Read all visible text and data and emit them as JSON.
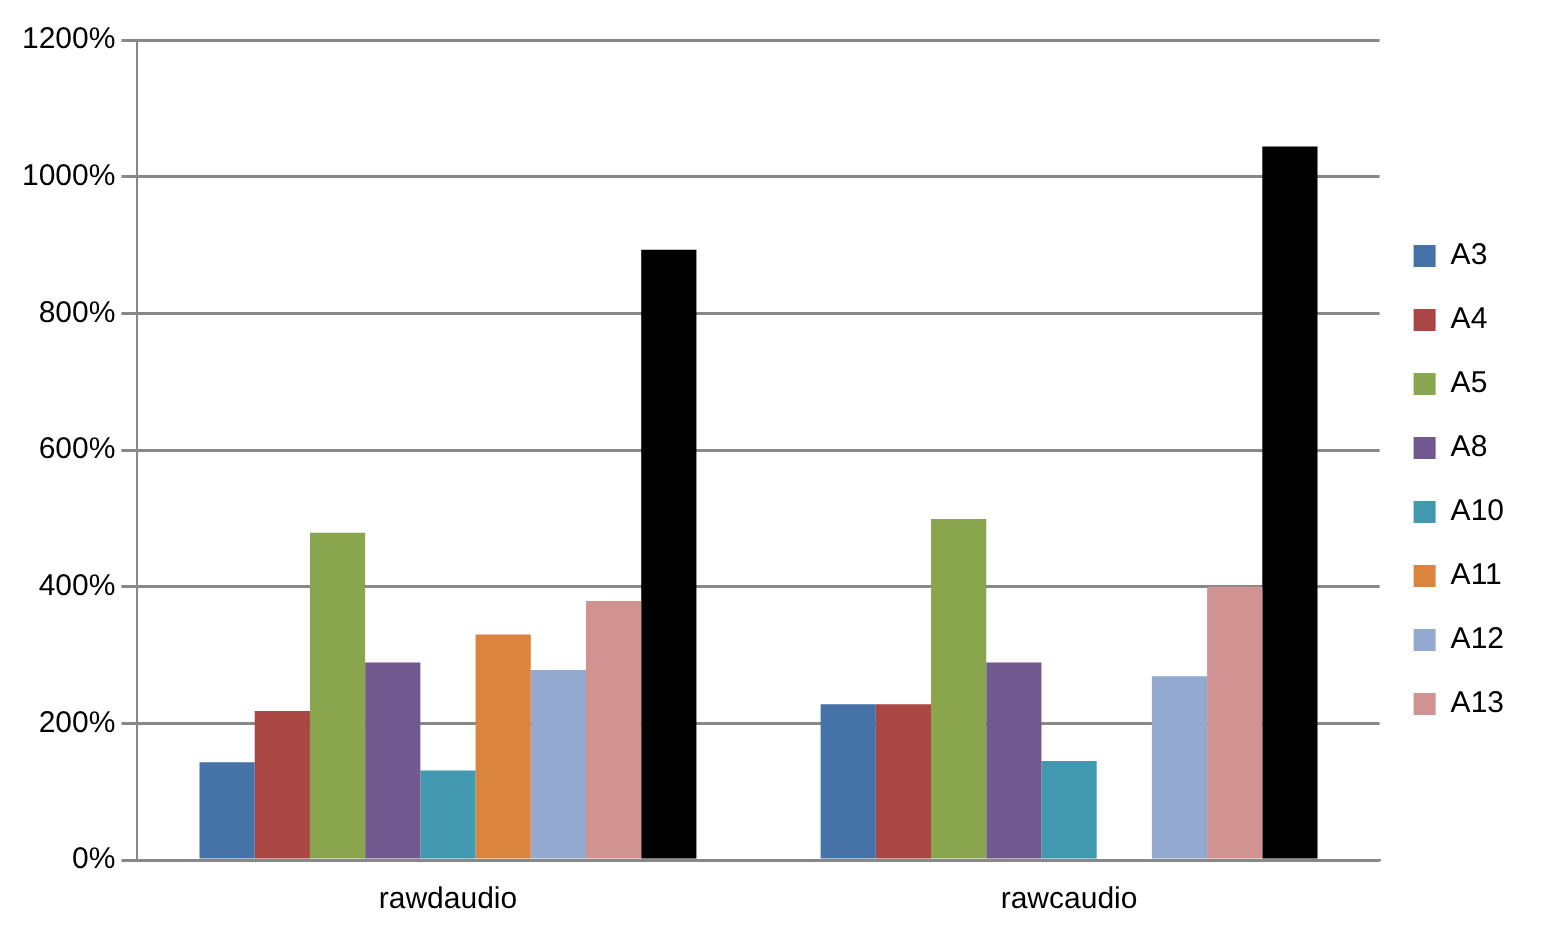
{
  "chart_data": {
    "type": "bar",
    "categories": [
      "rawdaudio",
      "rawcaudio"
    ],
    "series": [
      {
        "name": "A3",
        "color": "#4572a7",
        "values": [
          143,
          228
        ]
      },
      {
        "name": "A4",
        "color": "#aa4643",
        "values": [
          218,
          228
        ]
      },
      {
        "name": "A5",
        "color": "#89a54e",
        "values": [
          479,
          499
        ]
      },
      {
        "name": "A8",
        "color": "#71588f",
        "values": [
          289,
          289
        ]
      },
      {
        "name": "A10",
        "color": "#4198af",
        "values": [
          131,
          145
        ]
      },
      {
        "name": "A11",
        "color": "#db843d",
        "values": [
          330,
          null
        ]
      },
      {
        "name": "A12",
        "color": "#93a9cf",
        "values": [
          278,
          269
        ]
      },
      {
        "name": "A13",
        "color": "#d19392",
        "values": [
          379,
          400
        ]
      },
      {
        "color": "#000000",
        "values": [
          893,
          1044
        ]
      }
    ],
    "ylim": [
      0,
      1200
    ],
    "yticks": [
      {
        "value": 0,
        "label": "0%"
      },
      {
        "value": 200,
        "label": "200%"
      },
      {
        "value": 400,
        "label": "400%"
      },
      {
        "value": 600,
        "label": "600%"
      },
      {
        "value": 800,
        "label": "800%"
      },
      {
        "value": 1000,
        "label": "1000%"
      },
      {
        "value": 1200,
        "label": "1200%"
      }
    ],
    "grid": "y",
    "legend": "right"
  }
}
